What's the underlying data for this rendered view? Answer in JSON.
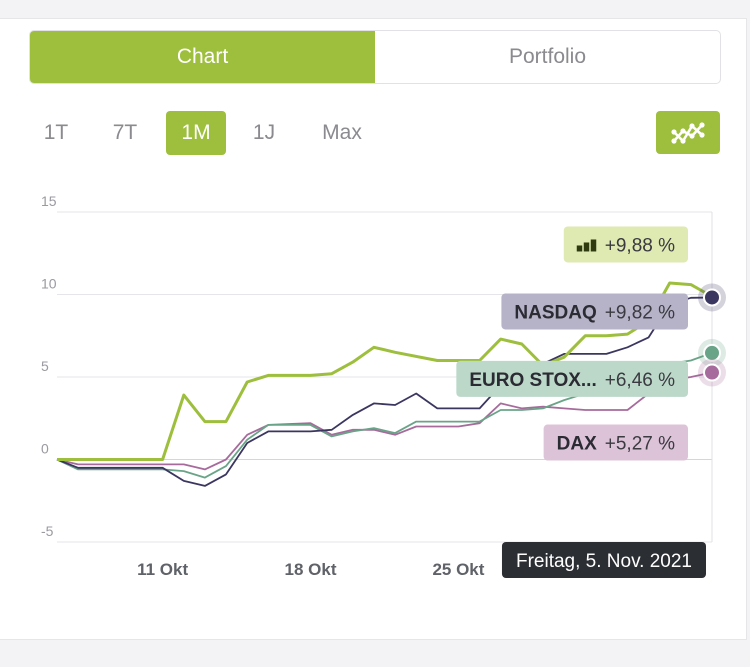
{
  "tabs": [
    {
      "label": "Chart",
      "active": true
    },
    {
      "label": "Portfolio",
      "active": false
    }
  ],
  "periods": [
    {
      "label": "1T",
      "active": false
    },
    {
      "label": "7T",
      "active": false
    },
    {
      "label": "1M",
      "active": true
    },
    {
      "label": "1J",
      "active": false
    },
    {
      "label": "Max",
      "active": false
    }
  ],
  "graph_toggle_icon": "line-chart-icon",
  "chart_data": {
    "type": "line",
    "ylim": [
      -5,
      15
    ],
    "yticks": [
      "15",
      "10",
      "5",
      "0",
      "-5"
    ],
    "xticks": [
      "11 Okt",
      "18 Okt",
      "25 Okt"
    ],
    "xlim": [
      "2021-10-06",
      "2021-11-06"
    ],
    "tooltip": "Freitag, 5. Nov. 2021",
    "grid": true,
    "series": [
      {
        "name": "",
        "label_value": "+9,88 %",
        "color": "#9dbf3d",
        "badge_bg": "#dfeab2",
        "badge_icon": "bar-chart-icon",
        "points": [
          [
            "2021-10-06",
            0
          ],
          [
            "2021-10-07",
            0
          ],
          [
            "2021-10-08",
            0
          ],
          [
            "2021-10-09",
            0
          ],
          [
            "2021-10-11",
            0
          ],
          [
            "2021-10-12",
            3.9
          ],
          [
            "2021-10-13",
            2.3
          ],
          [
            "2021-10-14",
            2.3
          ],
          [
            "2021-10-15",
            4.7
          ],
          [
            "2021-10-16",
            5.1
          ],
          [
            "2021-10-18",
            5.1
          ],
          [
            "2021-10-19",
            5.2
          ],
          [
            "2021-10-20",
            5.9
          ],
          [
            "2021-10-21",
            6.8
          ],
          [
            "2021-10-22",
            6.5
          ],
          [
            "2021-10-24",
            6.0
          ],
          [
            "2021-10-25",
            6.0
          ],
          [
            "2021-10-26",
            6.0
          ],
          [
            "2021-10-27",
            7.3
          ],
          [
            "2021-10-28",
            7.0
          ],
          [
            "2021-10-29",
            5.7
          ],
          [
            "2021-10-30",
            6.2
          ],
          [
            "2021-10-31",
            7.5
          ],
          [
            "2021-11-01",
            7.5
          ],
          [
            "2021-11-02",
            7.6
          ],
          [
            "2021-11-03",
            8.4
          ],
          [
            "2021-11-04",
            10.7
          ],
          [
            "2021-11-05",
            10.6
          ],
          [
            "2021-11-06",
            9.88
          ]
        ]
      },
      {
        "name": "NASDAQ",
        "label_value": "+9,82 %",
        "color": "#3b3660",
        "badge_bg": "#b6b3c8",
        "points": [
          [
            "2021-10-06",
            0
          ],
          [
            "2021-10-07",
            -0.5
          ],
          [
            "2021-10-09",
            -0.5
          ],
          [
            "2021-10-11",
            -0.5
          ],
          [
            "2021-10-12",
            -1.3
          ],
          [
            "2021-10-13",
            -1.6
          ],
          [
            "2021-10-14",
            -0.9
          ],
          [
            "2021-10-15",
            1.0
          ],
          [
            "2021-10-16",
            1.7
          ],
          [
            "2021-10-18",
            1.7
          ],
          [
            "2021-10-19",
            1.8
          ],
          [
            "2021-10-20",
            2.7
          ],
          [
            "2021-10-21",
            3.4
          ],
          [
            "2021-10-22",
            3.3
          ],
          [
            "2021-10-23",
            4.0
          ],
          [
            "2021-10-24",
            3.1
          ],
          [
            "2021-10-25",
            3.1
          ],
          [
            "2021-10-26",
            3.1
          ],
          [
            "2021-10-27",
            4.5
          ],
          [
            "2021-10-28",
            5.0
          ],
          [
            "2021-10-29",
            5.8
          ],
          [
            "2021-10-30",
            6.4
          ],
          [
            "2021-10-31",
            6.4
          ],
          [
            "2021-11-01",
            6.4
          ],
          [
            "2021-11-02",
            6.8
          ],
          [
            "2021-11-03",
            7.4
          ],
          [
            "2021-11-04",
            9.4
          ],
          [
            "2021-11-05",
            9.8
          ],
          [
            "2021-11-06",
            9.82
          ]
        ]
      },
      {
        "name": "EURO STOX...",
        "label_value": "+6,46 %",
        "color": "#6aa488",
        "badge_bg": "#bcd8c9",
        "points": [
          [
            "2021-10-06",
            0
          ],
          [
            "2021-10-07",
            -0.6
          ],
          [
            "2021-10-09",
            -0.6
          ],
          [
            "2021-10-11",
            -0.6
          ],
          [
            "2021-10-12",
            -0.7
          ],
          [
            "2021-10-13",
            -1.1
          ],
          [
            "2021-10-14",
            -0.4
          ],
          [
            "2021-10-15",
            1.2
          ],
          [
            "2021-10-16",
            2.1
          ],
          [
            "2021-10-18",
            2.1
          ],
          [
            "2021-10-19",
            1.4
          ],
          [
            "2021-10-20",
            1.7
          ],
          [
            "2021-10-21",
            1.9
          ],
          [
            "2021-10-22",
            1.6
          ],
          [
            "2021-10-23",
            2.3
          ],
          [
            "2021-10-24",
            2.3
          ],
          [
            "2021-10-25",
            2.3
          ],
          [
            "2021-10-26",
            2.3
          ],
          [
            "2021-10-27",
            3.0
          ],
          [
            "2021-10-28",
            3.0
          ],
          [
            "2021-10-29",
            3.1
          ],
          [
            "2021-10-30",
            3.6
          ],
          [
            "2021-10-31",
            4.0
          ],
          [
            "2021-11-01",
            4.0
          ],
          [
            "2021-11-02",
            4.4
          ],
          [
            "2021-11-03",
            5.0
          ],
          [
            "2021-11-04",
            5.8
          ],
          [
            "2021-11-05",
            6.0
          ],
          [
            "2021-11-06",
            6.46
          ]
        ]
      },
      {
        "name": "DAX",
        "label_value": "+5,27 %",
        "color": "#a66b9c",
        "badge_bg": "#dcc3d8",
        "points": [
          [
            "2021-10-06",
            0
          ],
          [
            "2021-10-07",
            -0.3
          ],
          [
            "2021-10-09",
            -0.3
          ],
          [
            "2021-10-11",
            -0.3
          ],
          [
            "2021-10-12",
            -0.3
          ],
          [
            "2021-10-13",
            -0.6
          ],
          [
            "2021-10-14",
            0.0
          ],
          [
            "2021-10-15",
            1.5
          ],
          [
            "2021-10-16",
            2.1
          ],
          [
            "2021-10-18",
            2.2
          ],
          [
            "2021-10-19",
            1.5
          ],
          [
            "2021-10-20",
            1.8
          ],
          [
            "2021-10-21",
            1.8
          ],
          [
            "2021-10-22",
            1.5
          ],
          [
            "2021-10-23",
            2.0
          ],
          [
            "2021-10-24",
            2.0
          ],
          [
            "2021-10-25",
            2.0
          ],
          [
            "2021-10-26",
            2.2
          ],
          [
            "2021-10-27",
            3.4
          ],
          [
            "2021-10-28",
            3.1
          ],
          [
            "2021-10-29",
            3.2
          ],
          [
            "2021-10-30",
            3.1
          ],
          [
            "2021-10-31",
            3.0
          ],
          [
            "2021-11-01",
            3.0
          ],
          [
            "2021-11-02",
            3.0
          ],
          [
            "2021-11-03",
            4.0
          ],
          [
            "2021-11-04",
            4.8
          ],
          [
            "2021-11-05",
            5.0
          ],
          [
            "2021-11-06",
            5.27
          ]
        ]
      }
    ]
  }
}
